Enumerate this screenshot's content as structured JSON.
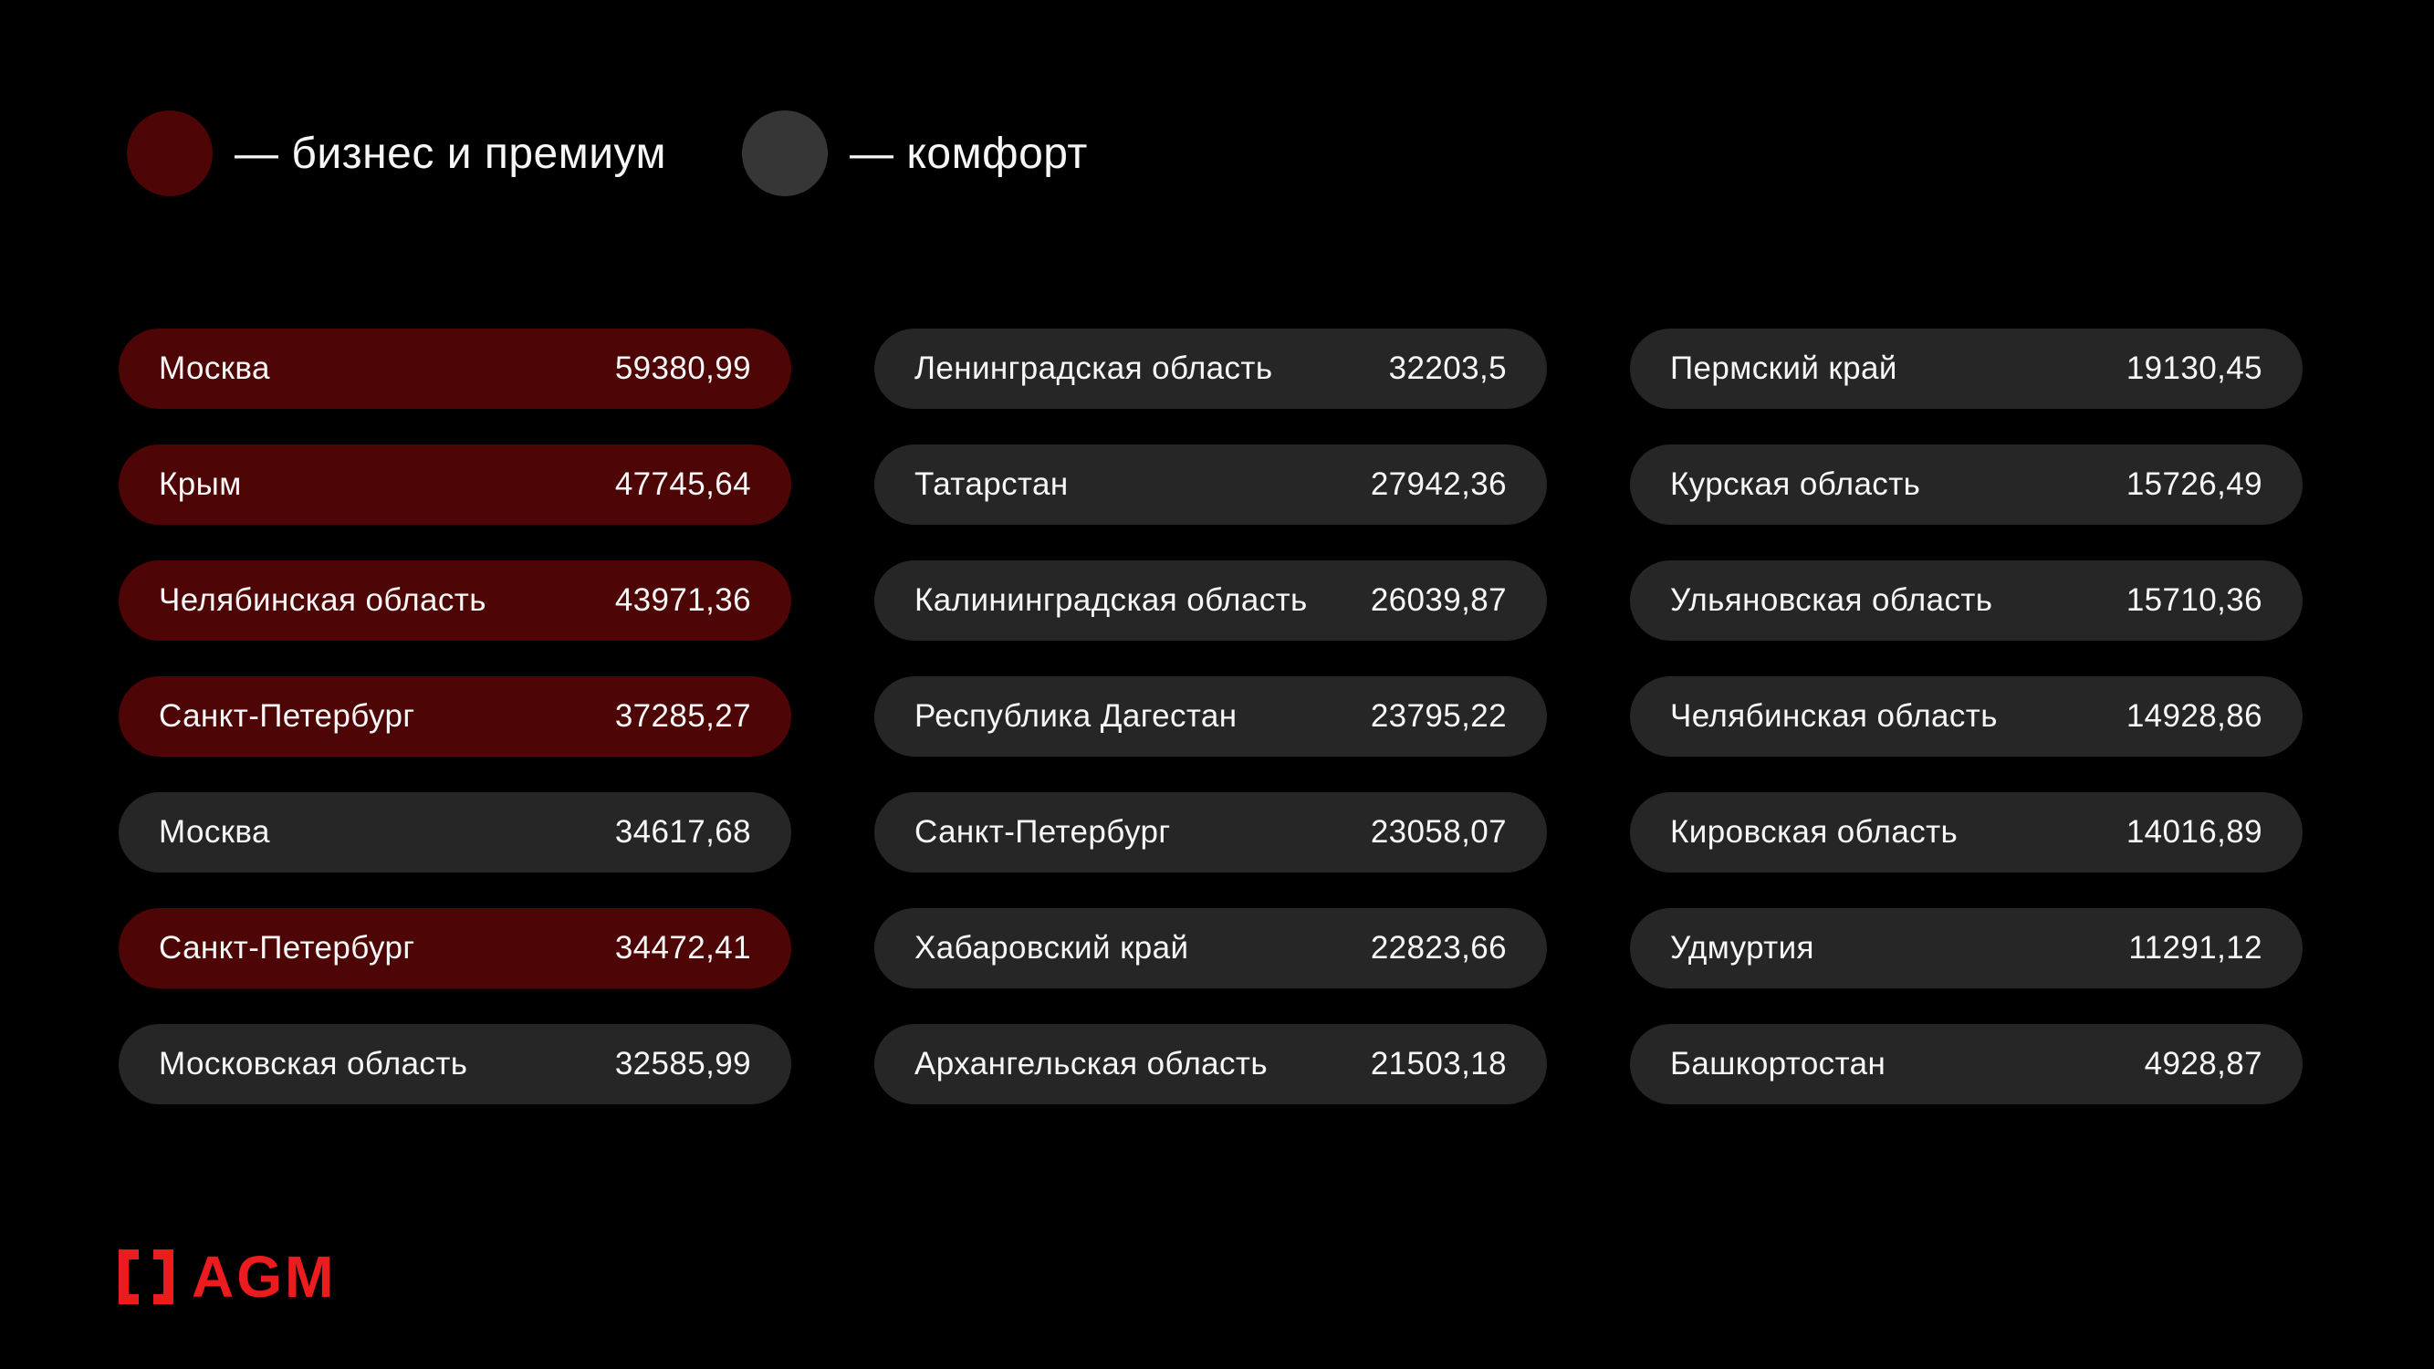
{
  "theme": {
    "background": "#000000",
    "business_premium_color": "#4e0505",
    "comfort_row_color": "#262626",
    "comfort_legend_color": "#363636",
    "text_color": "#f7f7f7",
    "logo_color": "#eb1b1e"
  },
  "legend": {
    "items": [
      {
        "key": "business_premium",
        "label": "— бизнес и премиум"
      },
      {
        "key": "comfort",
        "label": "— комфорт"
      }
    ]
  },
  "columns": [
    {
      "rows": [
        {
          "label": "Москва",
          "value": "59380,99",
          "segment": "business_premium"
        },
        {
          "label": "Крым",
          "value": "47745,64",
          "segment": "business_premium"
        },
        {
          "label": "Челябинская область",
          "value": "43971,36",
          "segment": "business_premium"
        },
        {
          "label": "Санкт-Петербург",
          "value": "37285,27",
          "segment": "business_premium"
        },
        {
          "label": "Москва",
          "value": "34617,68",
          "segment": "comfort"
        },
        {
          "label": "Санкт-Петербург",
          "value": "34472,41",
          "segment": "business_premium"
        },
        {
          "label": "Московская область",
          "value": "32585,99",
          "segment": "comfort"
        }
      ]
    },
    {
      "rows": [
        {
          "label": "Ленинградская область",
          "value": "32203,5",
          "segment": "comfort"
        },
        {
          "label": "Татарстан",
          "value": "27942,36",
          "segment": "comfort"
        },
        {
          "label": "Калининградская область",
          "value": "26039,87",
          "segment": "comfort"
        },
        {
          "label": "Республика Дагестан",
          "value": "23795,22",
          "segment": "comfort"
        },
        {
          "label": "Санкт-Петербург",
          "value": "23058,07",
          "segment": "comfort"
        },
        {
          "label": "Хабаровский край",
          "value": "22823,66",
          "segment": "comfort"
        },
        {
          "label": "Архангельская область",
          "value": "21503,18",
          "segment": "comfort"
        }
      ]
    },
    {
      "rows": [
        {
          "label": "Пермский край",
          "value": "19130,45",
          "segment": "comfort"
        },
        {
          "label": "Курская область",
          "value": "15726,49",
          "segment": "comfort"
        },
        {
          "label": "Ульяновская область",
          "value": "15710,36",
          "segment": "comfort"
        },
        {
          "label": "Челябинская область",
          "value": "14928,86",
          "segment": "comfort"
        },
        {
          "label": "Кировская область",
          "value": "14016,89",
          "segment": "comfort"
        },
        {
          "label": "Удмуртия",
          "value": "11291,12",
          "segment": "comfort"
        },
        {
          "label": "Башкортостан",
          "value": "4928,87",
          "segment": "comfort"
        }
      ]
    }
  ],
  "logo": {
    "mark": "[ ]",
    "text": "AGM"
  },
  "chart_data": {
    "type": "table",
    "title": "",
    "legend": [
      {
        "name": "бизнес и премиум",
        "color": "#4e0505"
      },
      {
        "name": "комфорт",
        "color": "#262626"
      }
    ],
    "entries": [
      {
        "region": "Москва",
        "value": 59380.99,
        "segment": "бизнес и премиум"
      },
      {
        "region": "Крым",
        "value": 47745.64,
        "segment": "бизнес и премиум"
      },
      {
        "region": "Челябинская область",
        "value": 43971.36,
        "segment": "бизнес и премиум"
      },
      {
        "region": "Санкт-Петербург",
        "value": 37285.27,
        "segment": "бизнес и премиум"
      },
      {
        "region": "Москва",
        "value": 34617.68,
        "segment": "комфорт"
      },
      {
        "region": "Санкт-Петербург",
        "value": 34472.41,
        "segment": "бизнес и премиум"
      },
      {
        "region": "Московская область",
        "value": 32585.99,
        "segment": "комфорт"
      },
      {
        "region": "Ленинградская область",
        "value": 32203.5,
        "segment": "комфорт"
      },
      {
        "region": "Татарстан",
        "value": 27942.36,
        "segment": "комфорт"
      },
      {
        "region": "Калининградская область",
        "value": 26039.87,
        "segment": "комфорт"
      },
      {
        "region": "Республика Дагестан",
        "value": 23795.22,
        "segment": "комфорт"
      },
      {
        "region": "Санкт-Петербург",
        "value": 23058.07,
        "segment": "комфорт"
      },
      {
        "region": "Хабаровский край",
        "value": 22823.66,
        "segment": "комфорт"
      },
      {
        "region": "Архангельская область",
        "value": 21503.18,
        "segment": "комфорт"
      },
      {
        "region": "Пермский край",
        "value": 19130.45,
        "segment": "комфорт"
      },
      {
        "region": "Курская область",
        "value": 15726.49,
        "segment": "комфорт"
      },
      {
        "region": "Ульяновская область",
        "value": 15710.36,
        "segment": "комфорт"
      },
      {
        "region": "Челябинская область",
        "value": 14928.86,
        "segment": "комфорт"
      },
      {
        "region": "Кировская область",
        "value": 14016.89,
        "segment": "комфорт"
      },
      {
        "region": "Удмуртия",
        "value": 11291.12,
        "segment": "комфорт"
      },
      {
        "region": "Башкортостан",
        "value": 4928.87,
        "segment": "комфорт"
      }
    ]
  }
}
